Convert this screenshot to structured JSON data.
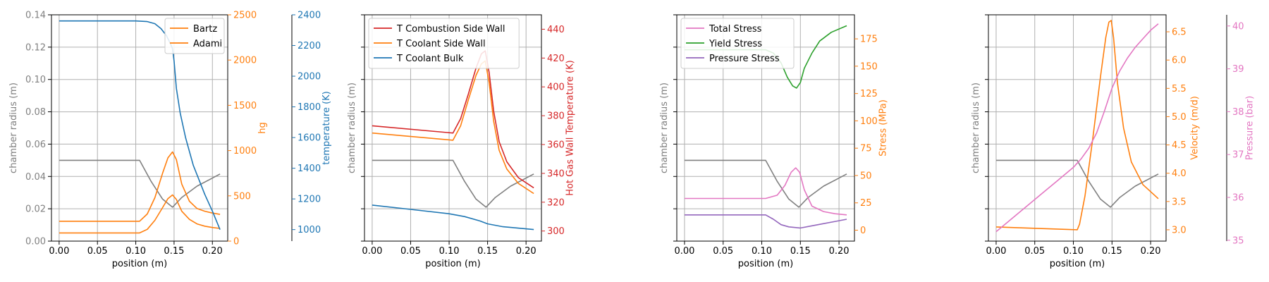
{
  "chart_data": [
    {
      "type": "line",
      "xlabel": "position (m)",
      "xlim": [
        -0.01,
        0.22
      ],
      "xticks": [
        "0.00",
        "0.05",
        "0.10",
        "0.15",
        "0.20"
      ],
      "axes": [
        {
          "id": "L",
          "label": "chamber radius (m)",
          "color": "#808080",
          "ylim": [
            0,
            0.14
          ],
          "ticks": [
            "0.00",
            "0.02",
            "0.04",
            "0.06",
            "0.08",
            "0.10",
            "0.12",
            "0.14"
          ],
          "grid": true
        },
        {
          "id": "R1",
          "label": "hg",
          "color": "#ff7f0e",
          "ylim": [
            0,
            2500
          ],
          "ticks": [
            "0",
            "500",
            "1000",
            "1500",
            "2000",
            "2500"
          ]
        },
        {
          "id": "R2",
          "label": "temperature (K)",
          "color": "#1f77b4",
          "ylim": [
            925,
            2400
          ],
          "ticks": [
            "1000",
            "1200",
            "1400",
            "1600",
            "1800",
            "2000",
            "2200",
            "2400"
          ]
        }
      ],
      "legend": {
        "placement": "top-right",
        "entries": [
          "Bartz",
          "Adami"
        ]
      },
      "series": [
        {
          "name": "",
          "axis": "L",
          "color": "#808080",
          "x": [
            0,
            0.105,
            0.12,
            0.135,
            0.148,
            0.16,
            0.18,
            0.2,
            0.21
          ],
          "y": [
            0.05,
            0.05,
            0.037,
            0.026,
            0.021,
            0.027,
            0.034,
            0.039,
            0.0415
          ]
        },
        {
          "name": "Bartz",
          "axis": "R1",
          "color": "#ff7f0e",
          "x": [
            0,
            0.105,
            0.115,
            0.125,
            0.135,
            0.142,
            0.148,
            0.153,
            0.16,
            0.17,
            0.18,
            0.19,
            0.2,
            0.21
          ],
          "y": [
            220,
            220,
            300,
            480,
            750,
            920,
            985,
            900,
            630,
            440,
            360,
            330,
            310,
            295
          ]
        },
        {
          "name": "Adami",
          "axis": "R1",
          "color": "#ff7f0e",
          "x": [
            0,
            0.105,
            0.115,
            0.125,
            0.135,
            0.142,
            0.148,
            0.153,
            0.16,
            0.17,
            0.18,
            0.19,
            0.2,
            0.21
          ],
          "y": [
            90,
            90,
            130,
            230,
            370,
            470,
            510,
            460,
            330,
            240,
            190,
            165,
            150,
            140
          ]
        },
        {
          "name": "",
          "axis": "R2",
          "color": "#1f77b4",
          "x": [
            0,
            0.1,
            0.115,
            0.125,
            0.133,
            0.14,
            0.145,
            0.148,
            0.15,
            0.153,
            0.158,
            0.165,
            0.175,
            0.19,
            0.2,
            0.21
          ],
          "y": [
            2360,
            2360,
            2356,
            2342,
            2310,
            2265,
            2215,
            2180,
            2100,
            1920,
            1760,
            1600,
            1420,
            1230,
            1120,
            1000
          ]
        }
      ]
    },
    {
      "type": "line",
      "xlabel": "position (m)",
      "xlim": [
        -0.01,
        0.22
      ],
      "xticks": [
        "0.00",
        "0.05",
        "0.10",
        "0.15",
        "0.20"
      ],
      "axes": [
        {
          "id": "L",
          "label": "chamber radius (m)",
          "color": "#808080",
          "ylim": [
            0,
            0.14
          ],
          "ticks": [],
          "grid": true
        },
        {
          "id": "R1",
          "label": "Hot Gas Wall Temperature (K)",
          "color": "#d62728",
          "ylim": [
            293,
            450
          ],
          "ticks": [
            "300",
            "320",
            "340",
            "360",
            "380",
            "400",
            "420",
            "440"
          ]
        }
      ],
      "legend": {
        "placement": "top-left",
        "entries": [
          "T Combustion Side Wall",
          "T Coolant Side Wall",
          "T Coolant Bulk"
        ]
      },
      "series": [
        {
          "name": "",
          "axis": "L",
          "color": "#808080",
          "x": [
            0,
            0.105,
            0.12,
            0.135,
            0.148,
            0.16,
            0.18,
            0.2,
            0.21
          ],
          "y": [
            0.05,
            0.05,
            0.037,
            0.026,
            0.021,
            0.027,
            0.034,
            0.039,
            0.0415
          ]
        },
        {
          "name": "T Combustion Side Wall",
          "axis": "R1",
          "color": "#d62728",
          "x": [
            0,
            0.105,
            0.115,
            0.125,
            0.135,
            0.142,
            0.147,
            0.152,
            0.158,
            0.165,
            0.175,
            0.19,
            0.21
          ],
          "y": [
            373,
            368,
            378,
            395,
            413,
            423,
            425,
            410,
            383,
            362,
            348,
            337,
            330
          ]
        },
        {
          "name": "T Coolant Side Wall",
          "axis": "R1",
          "color": "#ff7f0e",
          "x": [
            0,
            0.105,
            0.115,
            0.125,
            0.135,
            0.142,
            0.147,
            0.152,
            0.158,
            0.165,
            0.175,
            0.19,
            0.21
          ],
          "y": [
            368,
            363,
            373,
            391,
            408,
            416,
            418,
            403,
            376,
            356,
            343,
            333,
            326
          ]
        },
        {
          "name": "T Coolant Bulk",
          "axis": "R1",
          "color": "#1f77b4",
          "x": [
            0,
            0.05,
            0.1,
            0.12,
            0.14,
            0.15,
            0.17,
            0.19,
            0.21
          ],
          "y": [
            318,
            315,
            312,
            310,
            307,
            305,
            303,
            302,
            301
          ]
        }
      ]
    },
    {
      "type": "line",
      "xlabel": "position (m)",
      "xlim": [
        -0.01,
        0.22
      ],
      "xticks": [
        "0.00",
        "0.05",
        "0.10",
        "0.15",
        "0.20"
      ],
      "axes": [
        {
          "id": "L",
          "label": "chamber radius (m)",
          "color": "#808080",
          "ylim": [
            0,
            0.14
          ],
          "ticks": [],
          "grid": true
        },
        {
          "id": "R1",
          "label": "Stress (MPa)",
          "color": "#ff7f0e",
          "ylim": [
            -10,
            197
          ],
          "ticks": [
            "0",
            "25",
            "50",
            "75",
            "100",
            "125",
            "150",
            "175"
          ]
        }
      ],
      "legend": {
        "placement": "top-left",
        "entries": [
          "Total Stress",
          "Yield Stress",
          "Pressure Stress"
        ]
      },
      "series": [
        {
          "name": "",
          "axis": "L",
          "color": "#808080",
          "x": [
            0,
            0.105,
            0.12,
            0.135,
            0.148,
            0.16,
            0.18,
            0.2,
            0.21
          ],
          "y": [
            0.05,
            0.05,
            0.037,
            0.026,
            0.021,
            0.027,
            0.034,
            0.039,
            0.0415
          ]
        },
        {
          "name": "Total Stress",
          "axis": "R1",
          "color": "#e377c2",
          "x": [
            0,
            0.105,
            0.12,
            0.13,
            0.138,
            0.144,
            0.149,
            0.155,
            0.165,
            0.18,
            0.195,
            0.21
          ],
          "y": [
            29,
            29,
            32,
            41,
            53,
            57,
            53,
            37,
            22,
            17,
            15,
            14
          ]
        },
        {
          "name": "Yield Stress",
          "axis": "R1",
          "color": "#2ca02c",
          "x": [
            0,
            0.105,
            0.115,
            0.125,
            0.133,
            0.14,
            0.145,
            0.15,
            0.155,
            0.165,
            0.175,
            0.19,
            0.21
          ],
          "y": [
            165,
            165,
            162,
            153,
            140,
            132,
            130,
            135,
            148,
            162,
            173,
            181,
            187
          ]
        },
        {
          "name": "Pressure Stress",
          "axis": "R1",
          "color": "#9467bd",
          "x": [
            0,
            0.105,
            0.115,
            0.125,
            0.135,
            0.15,
            0.165,
            0.18,
            0.195,
            0.21
          ],
          "y": [
            14,
            14,
            10,
            5,
            3,
            2,
            4,
            6,
            8,
            10
          ]
        }
      ]
    },
    {
      "type": "line",
      "xlabel": "position (m)",
      "xlim": [
        -0.01,
        0.22
      ],
      "xticks": [
        "0.00",
        "0.05",
        "0.10",
        "0.15",
        "0.20"
      ],
      "axes": [
        {
          "id": "L",
          "label": "chamber radius (m)",
          "color": "#808080",
          "ylim": [
            0,
            0.14
          ],
          "ticks": [],
          "grid": true
        },
        {
          "id": "R1",
          "label": "Velocity (m/d)",
          "color": "#ff7f0e",
          "ylim": [
            2.8,
            6.8
          ],
          "ticks": [
            "3.0",
            "3.5",
            "4.0",
            "4.5",
            "5.0",
            "5.5",
            "6.0",
            "6.5"
          ]
        },
        {
          "id": "R2",
          "label": "Pressure (bar)",
          "color": "#e377c2",
          "ylim": [
            34.98,
            40.26
          ],
          "ticks": [
            "35",
            "36",
            "37",
            "38",
            "39",
            "40"
          ]
        }
      ],
      "legend": null,
      "series": [
        {
          "name": "",
          "axis": "L",
          "color": "#808080",
          "x": [
            0,
            0.105,
            0.12,
            0.135,
            0.148,
            0.16,
            0.18,
            0.2,
            0.21
          ],
          "y": [
            0.05,
            0.05,
            0.037,
            0.026,
            0.021,
            0.027,
            0.034,
            0.039,
            0.0415
          ]
        },
        {
          "name": "",
          "axis": "R1",
          "color": "#ff7f0e",
          "x": [
            0,
            0.105,
            0.108,
            0.115,
            0.125,
            0.135,
            0.142,
            0.146,
            0.149,
            0.152,
            0.157,
            0.165,
            0.175,
            0.19,
            0.21
          ],
          "y": [
            3.05,
            3.0,
            3.1,
            3.6,
            4.6,
            5.7,
            6.4,
            6.67,
            6.7,
            6.4,
            5.6,
            4.8,
            4.2,
            3.8,
            3.55
          ]
        },
        {
          "name": "",
          "axis": "R2",
          "color": "#e377c2",
          "x": [
            0,
            0.02,
            0.04,
            0.06,
            0.08,
            0.1,
            0.11,
            0.12,
            0.13,
            0.14,
            0.15,
            0.16,
            0.17,
            0.18,
            0.19,
            0.2,
            0.21
          ],
          "y": [
            35.2,
            35.5,
            35.8,
            36.1,
            36.4,
            36.7,
            36.9,
            37.15,
            37.5,
            38.0,
            38.55,
            38.95,
            39.25,
            39.5,
            39.7,
            39.9,
            40.05
          ]
        }
      ]
    }
  ]
}
